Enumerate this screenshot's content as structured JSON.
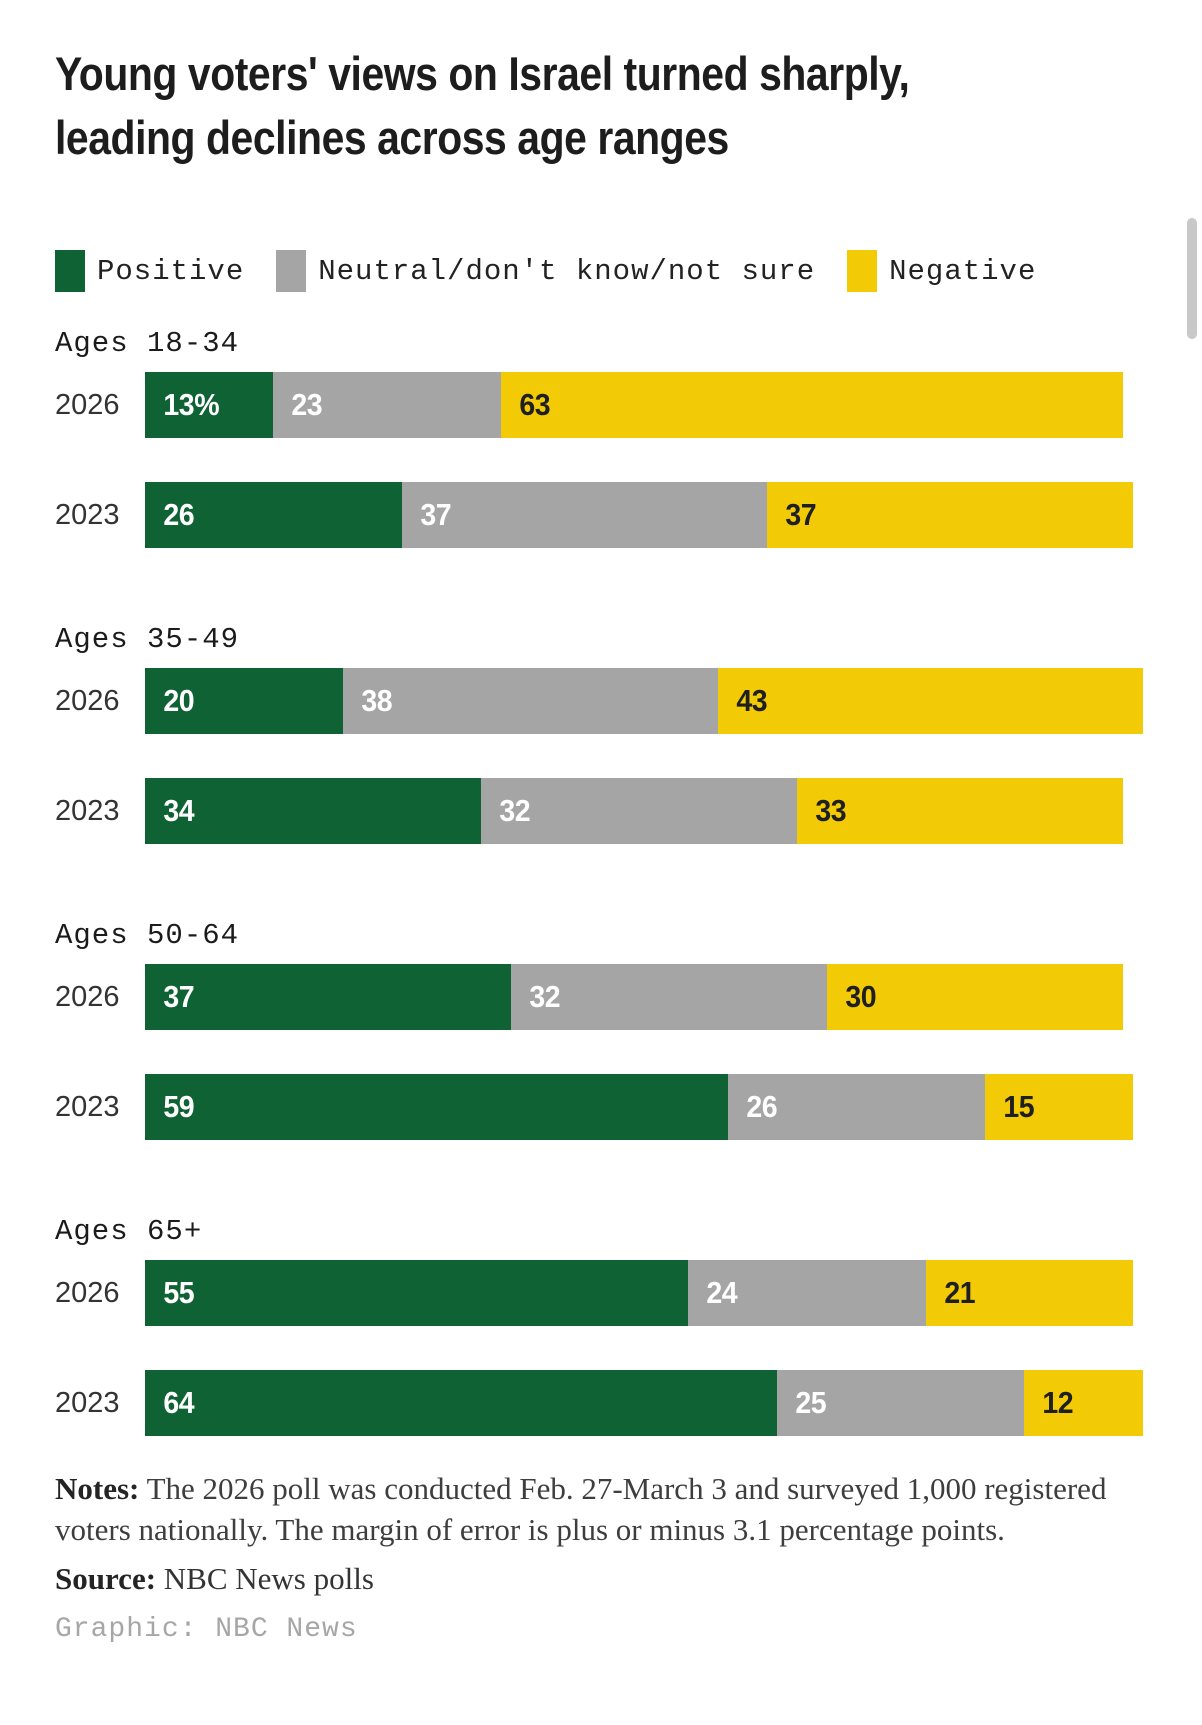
{
  "page": {
    "notes_label": "Notes:",
    "notes_text": "The 2026 poll was conducted Feb. 27-March 3 and surveyed 1,000 registered voters nationally. The margin of error is plus or minus 3.1 percentage points.",
    "source_label": "Source:",
    "source_text": "NBC News polls",
    "credit": "Graphic: NBC News"
  },
  "colors": {
    "positive": "#0e6233",
    "neutral": "#a5a5a5",
    "negative": "#f2ca05",
    "label_on_dark": "#ffffff",
    "label_on_negative": "#1f1f1f",
    "title_text": "#1d1d1d",
    "scrollbar": "#c8c8c8"
  },
  "chart_data": {
    "type": "bar",
    "orientation": "horizontal",
    "stacked": true,
    "unit": "percent",
    "x_max": 100,
    "title": "Young voters' views on Israel turned sharply, leading declines across age ranges",
    "title_lines": [
      "Young voters' views on Israel turned sharply,",
      "leading declines across age ranges"
    ],
    "legend": [
      {
        "id": "positive",
        "name": "Positive",
        "color": "#0e6233"
      },
      {
        "id": "neutral",
        "name": "Neutral/don't know/not sure",
        "color": "#a5a5a5"
      },
      {
        "id": "negative",
        "name": "Negative",
        "color": "#f2ca05"
      }
    ],
    "groups": [
      {
        "label": "Ages 18-34",
        "rows": [
          {
            "year": "2026",
            "values": [
              13,
              23,
              63
            ],
            "labels": [
              "13%",
              "23",
              "63"
            ]
          },
          {
            "year": "2023",
            "values": [
              26,
              37,
              37
            ],
            "labels": [
              "26",
              "37",
              "37"
            ]
          }
        ]
      },
      {
        "label": "Ages 35-49",
        "rows": [
          {
            "year": "2026",
            "values": [
              20,
              38,
              43
            ],
            "labels": [
              "20",
              "38",
              "43"
            ]
          },
          {
            "year": "2023",
            "values": [
              34,
              32,
              33
            ],
            "labels": [
              "34",
              "32",
              "33"
            ]
          }
        ]
      },
      {
        "label": "Ages 50-64",
        "rows": [
          {
            "year": "2026",
            "values": [
              37,
              32,
              30
            ],
            "labels": [
              "37",
              "32",
              "30"
            ]
          },
          {
            "year": "2023",
            "values": [
              59,
              26,
              15
            ],
            "labels": [
              "59",
              "26",
              "15"
            ]
          }
        ]
      },
      {
        "label": "Ages 65+",
        "rows": [
          {
            "year": "2026",
            "values": [
              55,
              24,
              21
            ],
            "labels": [
              "55",
              "24",
              "21"
            ]
          },
          {
            "year": "2023",
            "values": [
              64,
              25,
              12
            ],
            "labels": [
              "64",
              "25",
              "12"
            ]
          }
        ]
      }
    ]
  }
}
